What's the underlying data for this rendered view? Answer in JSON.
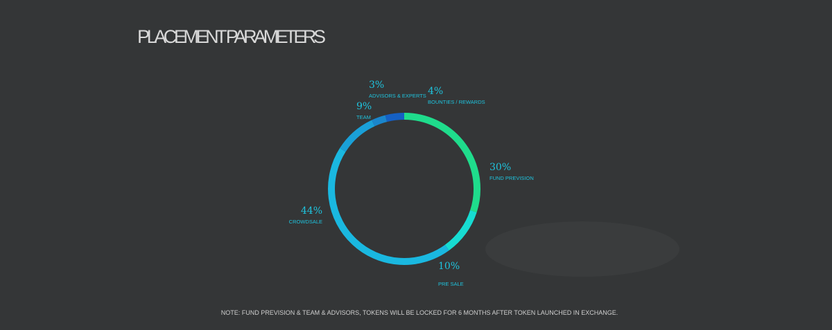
{
  "chart_data": {
    "type": "donut",
    "title": "PLACEMENT PARAMETERS",
    "categories": [
      "FUND PREVISION",
      "PRE SALE",
      "CROWDSALE",
      "TEAM",
      "ADVISORS & EXPERTS",
      "BOUNTIES / REWARDS"
    ],
    "values": [
      30,
      10,
      44,
      9,
      3,
      4
    ],
    "value_labels": [
      "30%",
      "10%",
      "44%",
      "9%",
      "3%",
      "4%"
    ],
    "colors": [
      "#1fdc8c",
      "#17dcd2",
      "#1ab8e0",
      "#1aa0d8",
      "#1a86cc",
      "#1560c4"
    ],
    "note": "NOTE:  FUND PREVISION & TEAM & ADVISORS, TOKENS WILL BE LOCKED FOR 6 MONTHS AFTER TOKEN LAUNCHED IN EXCHANGE."
  }
}
